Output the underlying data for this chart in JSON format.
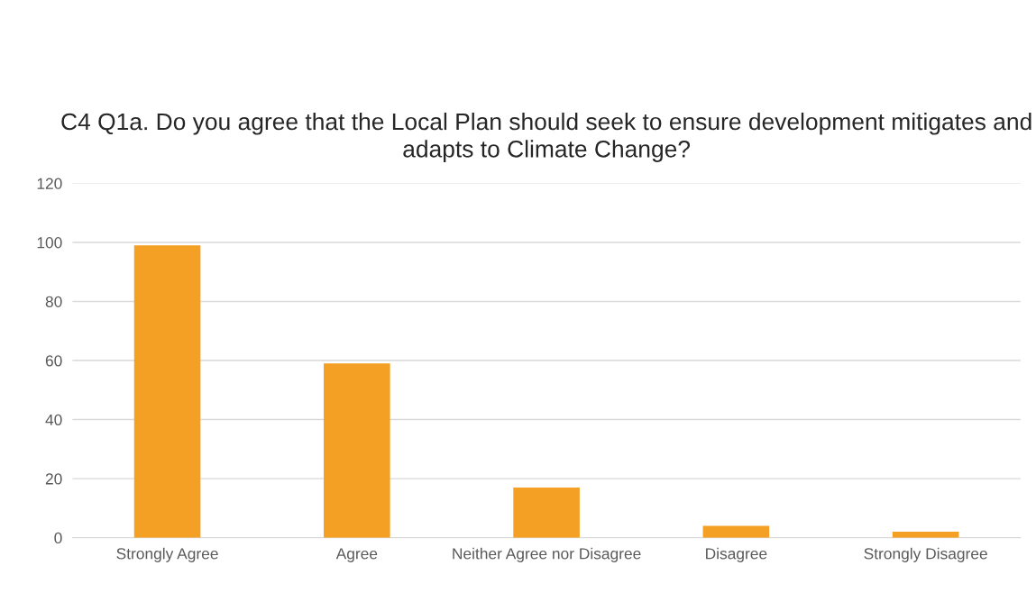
{
  "chart_data": {
    "type": "bar",
    "title": "C4 Q1a. Do you agree that the Local Plan should seek to ensure development mitigates and adapts to Climate Change?",
    "categories": [
      "Strongly Agree",
      "Agree",
      "Neither Agree nor Disagree",
      "Disagree",
      "Strongly Disagree"
    ],
    "values": [
      99,
      59,
      17,
      4,
      2
    ],
    "color": "#f4a024",
    "ylim": [
      0,
      120
    ],
    "yticks": [
      0,
      20,
      40,
      60,
      80,
      100,
      120
    ],
    "grid": "y"
  }
}
